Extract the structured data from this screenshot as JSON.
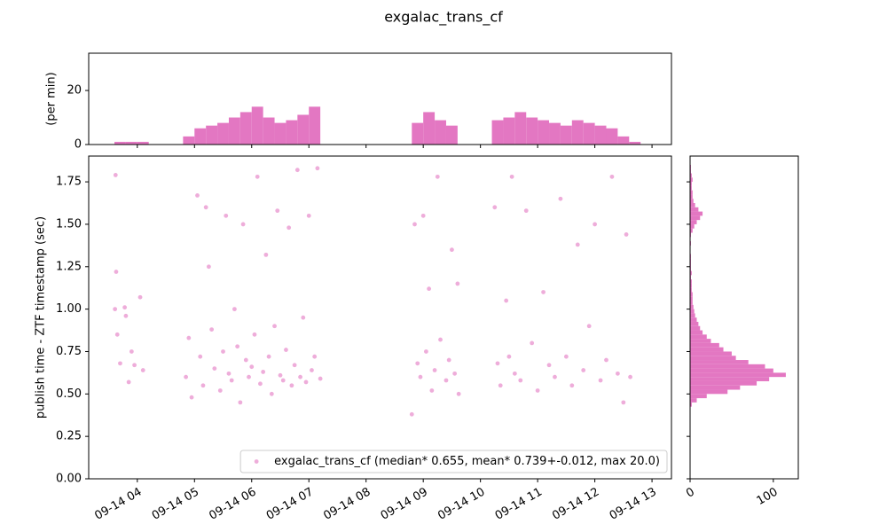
{
  "title": "exgalac_trans_cf",
  "chart_data": [
    {
      "type": "histogram",
      "orientation": "vertical",
      "ylabel": "(per min)",
      "color": "#e377c2",
      "xlim": [
        3.15,
        13.34
      ],
      "ylim": [
        0,
        33.8
      ],
      "yticks": [
        0,
        20
      ],
      "bins": [
        3.6,
        3.8,
        4.0,
        4.2,
        4.4,
        4.6,
        4.8,
        5.0,
        5.2,
        5.4,
        5.6,
        5.8,
        6.0,
        6.2,
        6.4,
        6.6,
        6.8,
        7.0,
        7.2,
        7.4,
        7.6,
        7.8,
        8.0,
        8.2,
        8.4,
        8.6,
        8.8,
        9.0,
        9.2,
        9.4,
        9.6,
        9.8,
        10.0,
        10.2,
        10.4,
        10.6,
        10.8,
        11.0,
        11.2,
        11.4,
        11.6,
        11.8,
        12.0,
        12.2,
        12.4,
        12.6,
        12.8
      ],
      "values": [
        1,
        1,
        1,
        0,
        0,
        0,
        3,
        6,
        7,
        8,
        10,
        12,
        14,
        10,
        8,
        9,
        11,
        14,
        0,
        0,
        0,
        0,
        0,
        0,
        0,
        0,
        8,
        12,
        9,
        7,
        0,
        0,
        0,
        9,
        10,
        12,
        10,
        9,
        8,
        7,
        9,
        8,
        7,
        6,
        3,
        1
      ]
    },
    {
      "type": "scatter",
      "ylabel": "publish time - ZTF timestamp (sec)",
      "legend": "lower right",
      "xlim": [
        3.15,
        13.34
      ],
      "ylim": [
        0,
        1.902
      ],
      "xticks": [
        {
          "value": 4,
          "label": "09-14 04"
        },
        {
          "value": 5,
          "label": "09-14 05"
        },
        {
          "value": 6,
          "label": "09-14 06"
        },
        {
          "value": 7,
          "label": "09-14 07"
        },
        {
          "value": 8,
          "label": "09-14 08"
        },
        {
          "value": 9,
          "label": "09-14 09"
        },
        {
          "value": 10,
          "label": "09-14 10"
        },
        {
          "value": 11,
          "label": "09-14 11"
        },
        {
          "value": 12,
          "label": "09-14 12"
        },
        {
          "value": 13,
          "label": "09-14 13"
        }
      ],
      "yticks": [
        {
          "value": 0,
          "label": "0.00"
        },
        {
          "value": 0.25,
          "label": "0.25"
        },
        {
          "value": 0.5,
          "label": "0.50"
        },
        {
          "value": 0.75,
          "label": "0.75"
        },
        {
          "value": 1,
          "label": "1.00"
        },
        {
          "value": 1.25,
          "label": "1.25"
        },
        {
          "value": 1.5,
          "label": "1.50"
        },
        {
          "value": 1.75,
          "label": "1.75"
        }
      ],
      "series": [
        {
          "name": "exgalac_trans_cf (median* 0.655, mean* 0.739+-0.012, max 20.0)",
          "color": "#e377c2",
          "x": [
            3.62,
            3.63,
            3.61,
            3.65,
            3.7,
            3.78,
            3.8,
            3.85,
            3.9,
            3.95,
            4.05,
            4.1,
            4.85,
            4.9,
            4.95,
            5.05,
            5.1,
            5.15,
            5.2,
            5.25,
            5.3,
            5.35,
            5.45,
            5.5,
            5.55,
            5.6,
            5.65,
            5.7,
            5.75,
            5.8,
            5.85,
            5.9,
            5.95,
            6.0,
            6.05,
            6.1,
            6.15,
            6.2,
            6.25,
            6.3,
            6.35,
            6.4,
            6.45,
            6.5,
            6.55,
            6.6,
            6.65,
            6.7,
            6.75,
            6.8,
            6.85,
            6.9,
            6.95,
            7.0,
            7.05,
            7.1,
            7.15,
            7.2,
            8.8,
            8.85,
            8.9,
            8.95,
            9.0,
            9.05,
            9.1,
            9.15,
            9.2,
            9.25,
            9.3,
            9.4,
            9.45,
            9.5,
            9.55,
            9.6,
            9.62,
            10.25,
            10.3,
            10.35,
            10.45,
            10.5,
            10.55,
            10.6,
            10.7,
            10.8,
            10.9,
            11.0,
            11.1,
            11.2,
            11.3,
            11.4,
            11.5,
            11.6,
            11.7,
            11.8,
            11.9,
            12.0,
            12.1,
            12.2,
            12.3,
            12.4,
            12.5,
            12.55,
            12.62
          ],
          "values": [
            1.79,
            1.22,
            1.0,
            0.85,
            0.68,
            1.01,
            0.96,
            0.57,
            0.75,
            0.67,
            1.07,
            0.64,
            0.6,
            0.83,
            0.48,
            1.67,
            0.72,
            0.55,
            1.6,
            1.25,
            0.88,
            0.65,
            0.52,
            0.75,
            1.55,
            0.62,
            0.58,
            1.0,
            0.78,
            0.45,
            1.5,
            0.7,
            0.6,
            0.66,
            0.85,
            1.78,
            0.56,
            0.63,
            1.32,
            0.72,
            0.5,
            0.9,
            1.58,
            0.61,
            0.58,
            0.76,
            1.48,
            0.55,
            0.67,
            1.82,
            0.6,
            0.95,
            0.57,
            1.55,
            0.64,
            0.72,
            1.83,
            0.59,
            0.38,
            1.5,
            0.68,
            0.6,
            1.55,
            0.75,
            1.12,
            0.52,
            0.64,
            1.78,
            0.82,
            0.58,
            0.7,
            1.35,
            0.62,
            1.15,
            0.5,
            1.6,
            0.68,
            0.55,
            1.05,
            0.72,
            1.78,
            0.62,
            0.58,
            1.58,
            0.8,
            0.52,
            1.1,
            0.67,
            0.6,
            1.65,
            0.72,
            0.55,
            1.38,
            0.64,
            0.9,
            1.5,
            0.58,
            0.7,
            1.78,
            0.62,
            0.45,
            1.44,
            0.6
          ]
        }
      ]
    },
    {
      "type": "histogram",
      "orientation": "horizontal",
      "color": "#e377c2",
      "xlim": [
        0,
        130
      ],
      "xticks": [
        0,
        100
      ],
      "bins": [
        0.425,
        0.45,
        0.475,
        0.5,
        0.525,
        0.55,
        0.575,
        0.6,
        0.625,
        0.65,
        0.675,
        0.7,
        0.725,
        0.75,
        0.775,
        0.8,
        0.825,
        0.85,
        0.875,
        0.9,
        0.925,
        0.95,
        0.975,
        1.0,
        1.025,
        1.05,
        1.075,
        1.1,
        1.125,
        1.15,
        1.175,
        1.2,
        1.225,
        1.25,
        1.275,
        1.3,
        1.325,
        1.35,
        1.375,
        1.4,
        1.425,
        1.45,
        1.475,
        1.5,
        1.525,
        1.55,
        1.575,
        1.6,
        1.625,
        1.65,
        1.675,
        1.7,
        1.725,
        1.75,
        1.775,
        1.8,
        1.825,
        1.85
      ],
      "values": [
        2,
        8,
        20,
        45,
        60,
        80,
        95,
        115,
        100,
        90,
        70,
        55,
        50,
        40,
        35,
        25,
        20,
        15,
        12,
        10,
        8,
        6,
        5,
        4,
        3,
        3,
        3,
        2,
        2,
        2,
        1,
        2,
        1,
        1,
        1,
        1,
        0,
        0,
        1,
        0,
        1,
        3,
        5,
        8,
        12,
        15,
        10,
        6,
        4,
        3,
        3,
        2,
        2,
        3,
        2,
        1,
        1
      ]
    }
  ]
}
